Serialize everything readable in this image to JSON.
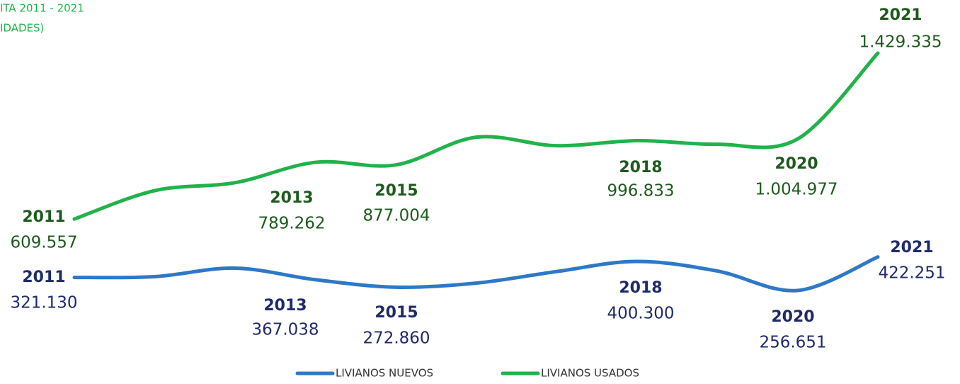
{
  "chart_data": {
    "type": "line",
    "title_lines": [
      "ITA 2011 - 2021",
      "IDADES)"
    ],
    "categories": [
      "2011",
      null,
      "2013",
      null,
      "2015",
      null,
      null,
      "2018",
      null,
      "2020",
      "2021"
    ],
    "series": [
      {
        "name": "LIVIANOS NUEVOS",
        "color": "#2e78c7",
        "label_color": "#1f2a6b",
        "values": [
          321130,
          325000,
          367038,
          310000,
          272860,
          293000,
          350000,
          400300,
          353000,
          256651,
          422251
        ],
        "value_labels": [
          "321.130",
          null,
          "367.038",
          null,
          "272.860",
          null,
          null,
          "400.300",
          null,
          "256.651",
          "422.251"
        ]
      },
      {
        "name": "LIVIANOS USADOS",
        "color": "#21b24b",
        "label_color": "#1e5a1e",
        "values": [
          609557,
          750000,
          789262,
          890000,
          877004,
          1014000,
          972000,
          996833,
          979000,
          1004977,
          1429335
        ],
        "value_labels": [
          "609.557",
          null,
          "789.262",
          null,
          "877.004",
          null,
          null,
          "996.833",
          null,
          "1.004.977",
          "1.429.335"
        ]
      }
    ]
  }
}
